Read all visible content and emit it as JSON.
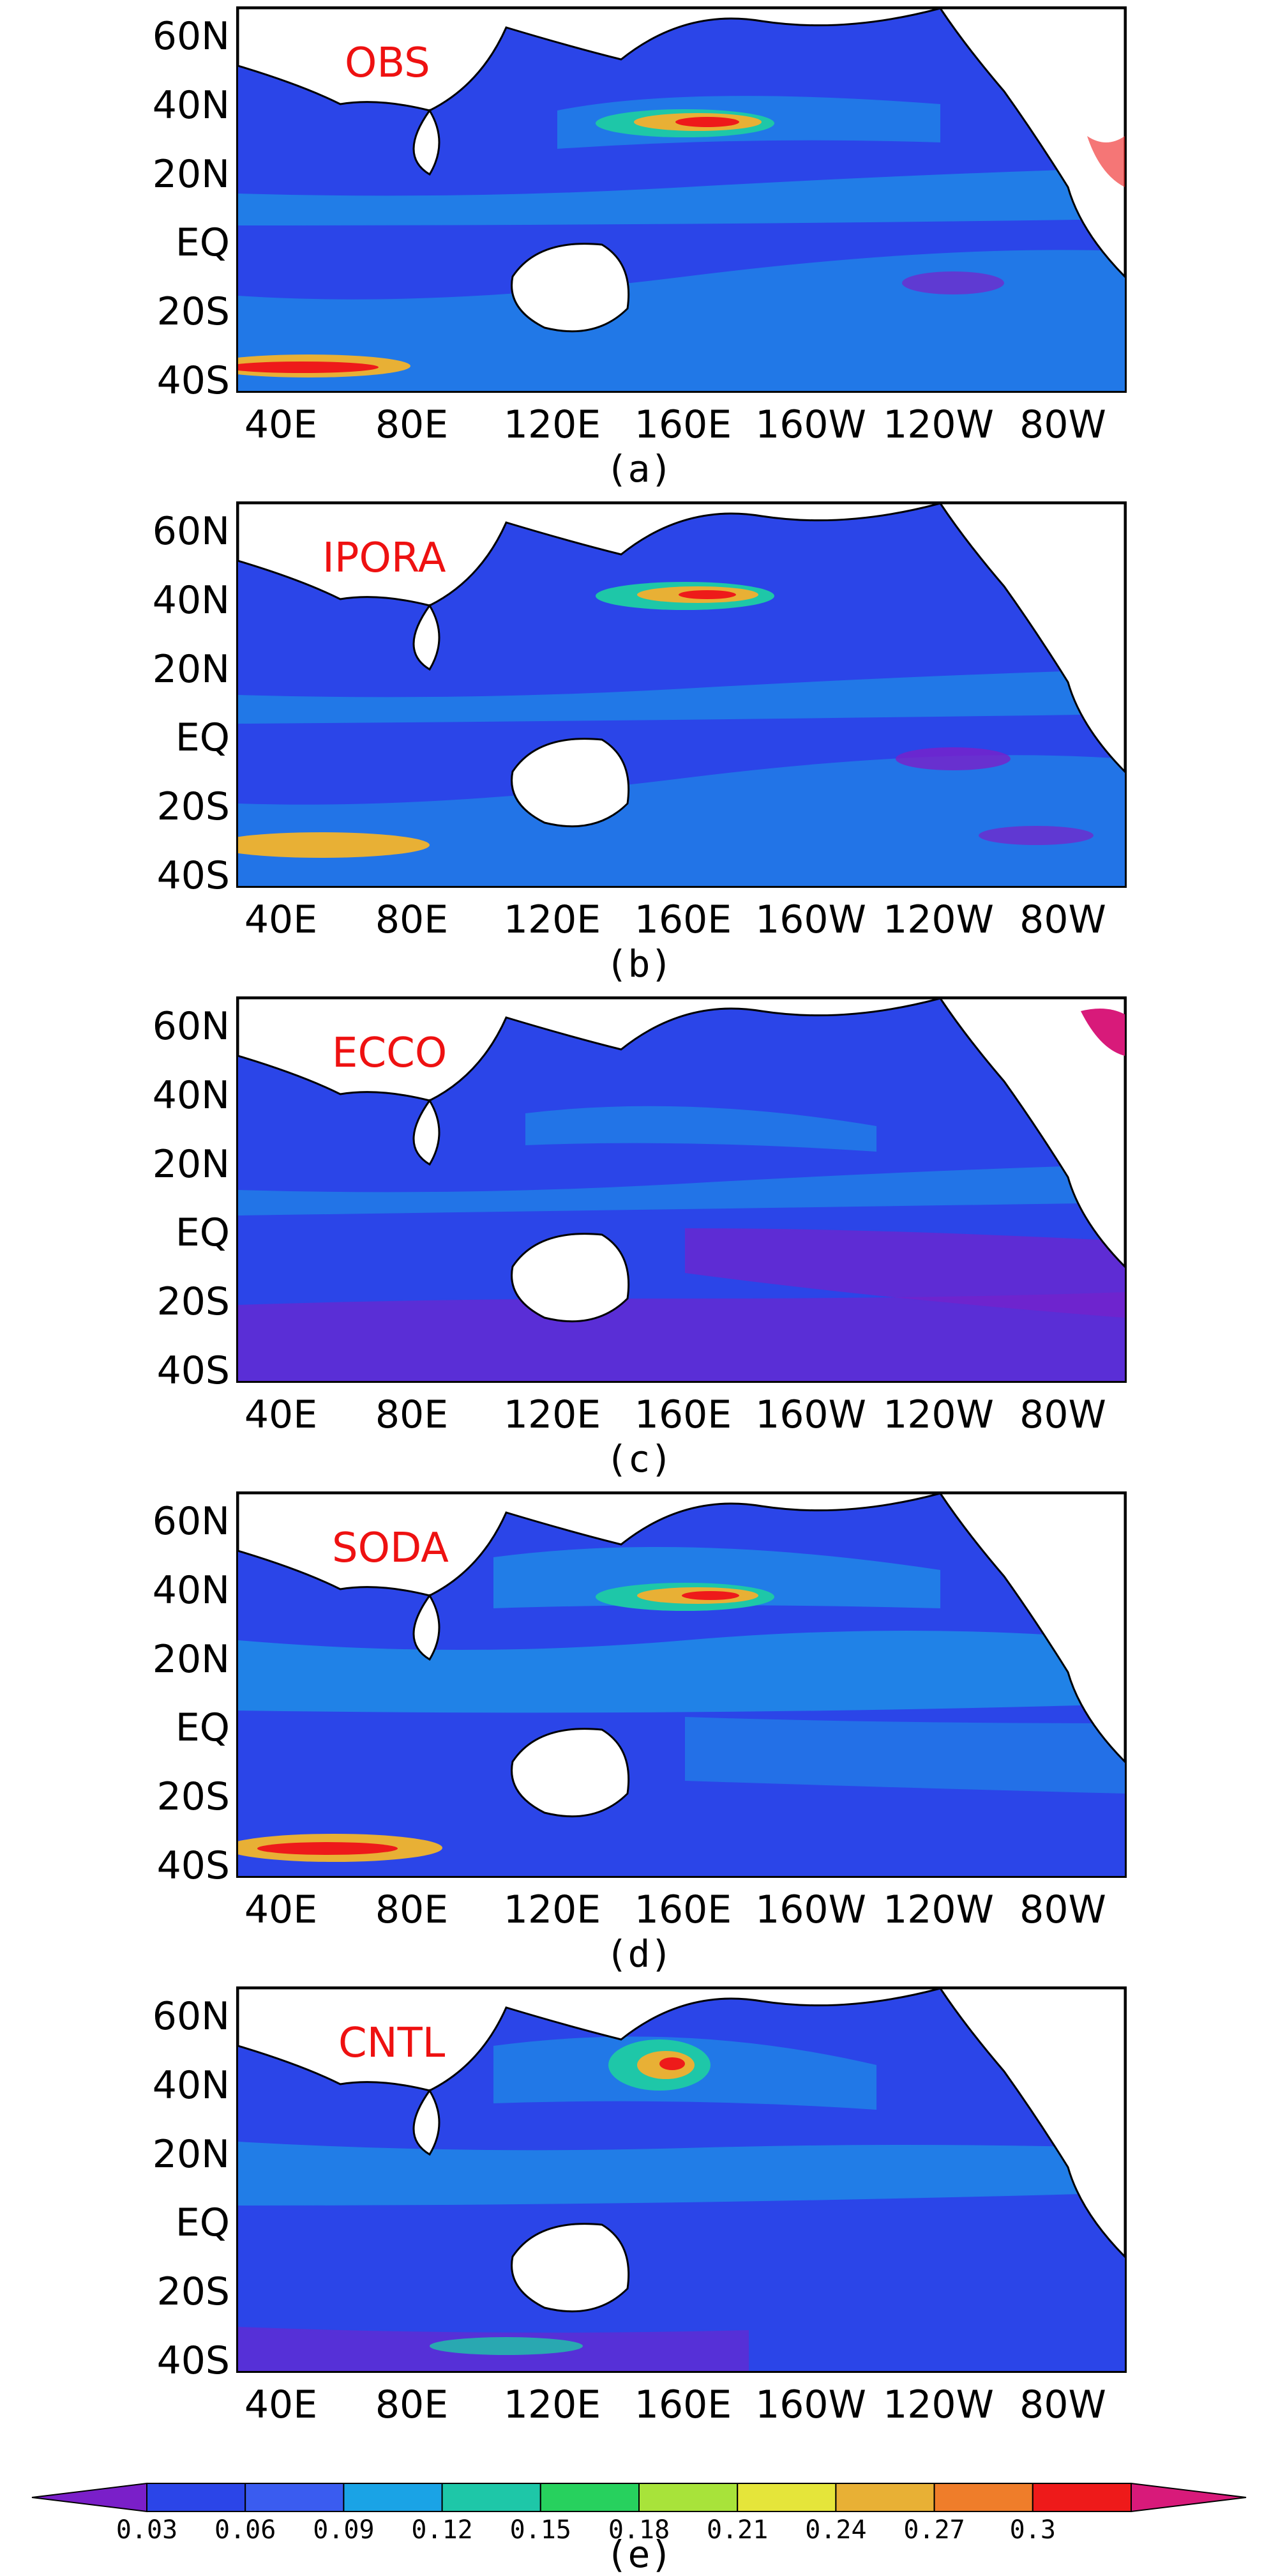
{
  "panels": [
    {
      "id": "a",
      "dataset": "OBS",
      "label": "(a)"
    },
    {
      "id": "b",
      "dataset": "IPORA",
      "label": "(b)"
    },
    {
      "id": "c",
      "dataset": "ECCO",
      "label": "(c)"
    },
    {
      "id": "d",
      "dataset": "SODA",
      "label": "(d)"
    },
    {
      "id": "e",
      "dataset": "CNTL",
      "label": ""
    }
  ],
  "lat_ticks": [
    "60N",
    "40N",
    "20N",
    "EQ",
    "20S",
    "40S"
  ],
  "lon_ticks": [
    "40E",
    "80E",
    "120E",
    "160E",
    "160W",
    "120W",
    "80W"
  ],
  "colorbar": {
    "levels": [
      "0.03",
      "0.06",
      "0.09",
      "0.12",
      "0.15",
      "0.18",
      "0.21",
      "0.24",
      "0.27",
      "0.3"
    ],
    "colors": [
      "#7a1fc9",
      "#2b45e8",
      "#3a5cf0",
      "#1aa3e6",
      "#1ec7a8",
      "#27d15e",
      "#a8e33a",
      "#e5e53a",
      "#e8b035",
      "#ef7d2a",
      "#ee1a1a",
      "#d81a7a"
    ],
    "label": "(e)"
  },
  "dataset_color": "#ee1111",
  "land_color": "#ffffff",
  "ocean_base_color": "#2b45e8"
}
